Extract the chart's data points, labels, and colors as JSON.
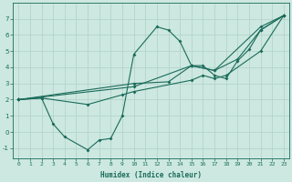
{
  "title": "",
  "xlabel": "Humidex (Indice chaleur)",
  "bg_color": "#cce8e0",
  "grid_color": "#b0d0c8",
  "line_color": "#1a6b5a",
  "xlim": [
    -0.5,
    23.5
  ],
  "ylim": [
    -1.6,
    8.0
  ],
  "xticks": [
    0,
    1,
    2,
    3,
    4,
    5,
    6,
    7,
    8,
    9,
    10,
    11,
    12,
    13,
    14,
    15,
    16,
    17,
    18,
    19,
    20,
    21,
    22,
    23
  ],
  "yticks": [
    -1,
    0,
    1,
    2,
    3,
    4,
    5,
    6,
    7
  ],
  "series": {
    "line1": {
      "x": [
        0,
        2,
        3,
        4,
        6,
        7,
        8,
        9,
        10,
        12,
        13,
        14,
        15,
        16,
        17,
        18,
        19,
        20,
        21,
        23
      ],
      "y": [
        2.0,
        2.1,
        0.5,
        -0.3,
        -1.1,
        -0.5,
        -0.4,
        1.0,
        4.8,
        6.5,
        6.3,
        5.6,
        4.1,
        4.1,
        3.5,
        3.3,
        4.4,
        5.1,
        6.3,
        7.2
      ]
    },
    "line2": {
      "x": [
        0,
        10,
        13,
        15,
        17,
        19,
        21,
        23
      ],
      "y": [
        2.0,
        3.0,
        3.1,
        4.1,
        3.8,
        4.5,
        6.3,
        7.2
      ]
    },
    "line3": {
      "x": [
        0,
        10,
        15,
        17,
        21,
        23
      ],
      "y": [
        2.0,
        2.8,
        4.1,
        3.8,
        6.5,
        7.2
      ]
    },
    "line4": {
      "x": [
        0,
        2,
        6,
        9,
        10,
        15,
        16,
        17,
        18,
        21,
        23
      ],
      "y": [
        2.0,
        2.1,
        1.7,
        2.3,
        2.5,
        3.2,
        3.5,
        3.3,
        3.5,
        5.0,
        7.2
      ]
    }
  },
  "xlabel_fontsize": 5.5,
  "tick_fontsize": 4.5,
  "marker_size": 2.0,
  "linewidth": 0.8
}
